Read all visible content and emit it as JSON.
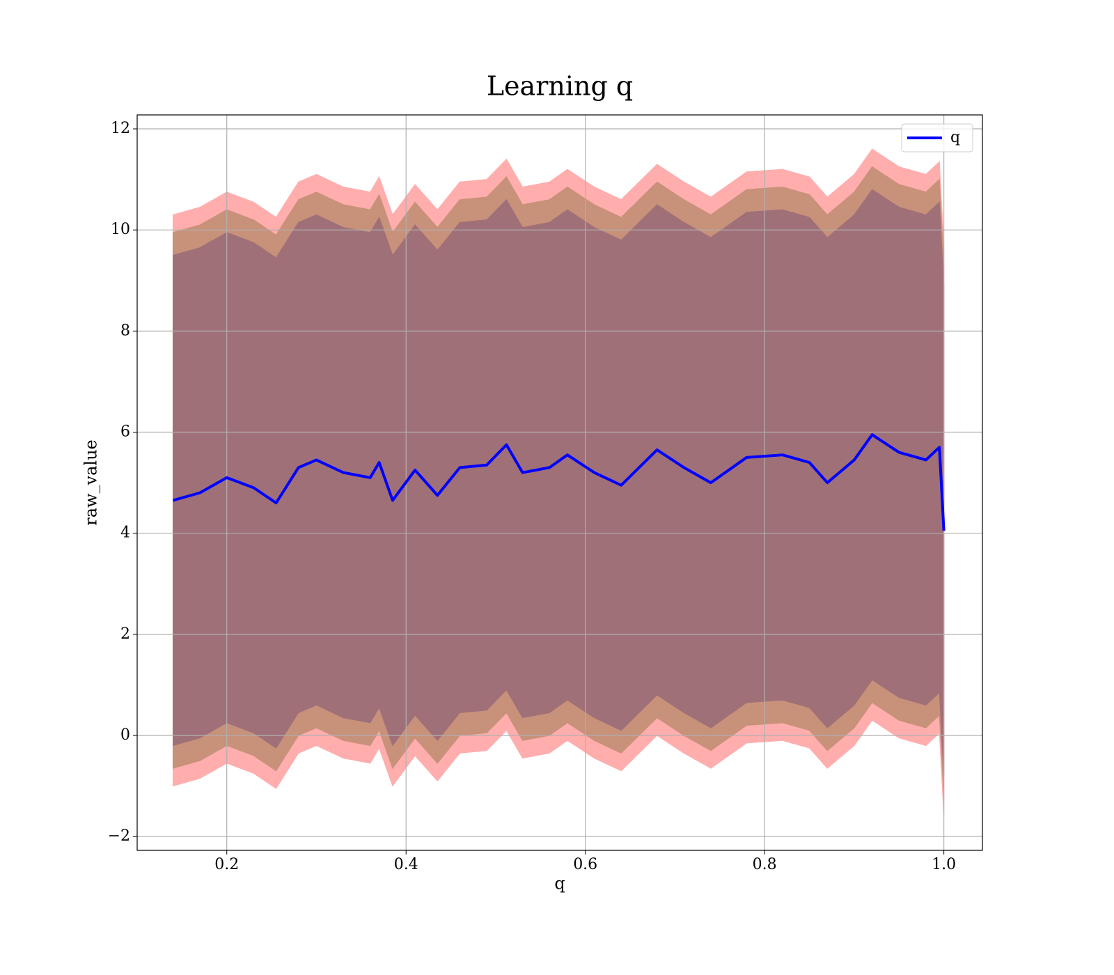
{
  "chart_data": {
    "type": "line",
    "title": "Learning q",
    "xlabel": "q",
    "ylabel": "raw_value",
    "x": [
      0.14,
      0.17,
      0.2,
      0.23,
      0.255,
      0.28,
      0.3,
      0.33,
      0.36,
      0.37,
      0.385,
      0.41,
      0.435,
      0.46,
      0.49,
      0.512,
      0.53,
      0.56,
      0.58,
      0.61,
      0.64,
      0.68,
      0.71,
      0.74,
      0.78,
      0.82,
      0.85,
      0.87,
      0.9,
      0.92,
      0.95,
      0.98,
      0.995,
      1.0
    ],
    "series": [
      {
        "name": "q",
        "color": "#0000ff",
        "values": [
          4.65,
          4.8,
          5.1,
          4.9,
          4.6,
          5.3,
          5.45,
          5.2,
          5.1,
          5.4,
          4.65,
          5.25,
          4.75,
          5.3,
          5.35,
          5.75,
          5.2,
          5.3,
          5.55,
          5.2,
          4.95,
          5.65,
          5.3,
          5.0,
          5.5,
          5.55,
          5.4,
          5.0,
          5.45,
          5.95,
          5.6,
          5.45,
          5.7,
          4.05
        ]
      }
    ],
    "bands": [
      {
        "color": "#ffadad",
        "upper": [
          10.3,
          10.45,
          10.75,
          10.55,
          10.25,
          10.95,
          11.1,
          10.85,
          10.75,
          11.05,
          10.3,
          10.9,
          10.4,
          10.95,
          11.0,
          11.4,
          10.85,
          10.95,
          11.2,
          10.85,
          10.6,
          11.3,
          10.95,
          10.65,
          11.15,
          11.2,
          11.05,
          10.65,
          11.1,
          11.6,
          11.25,
          11.1,
          11.35,
          9.7
        ],
        "lower": [
          -1.0,
          -0.85,
          -0.55,
          -0.75,
          -1.05,
          -0.35,
          -0.2,
          -0.45,
          -0.55,
          -0.25,
          -1.0,
          -0.4,
          -0.9,
          -0.35,
          -0.3,
          0.1,
          -0.45,
          -0.35,
          -0.1,
          -0.45,
          -0.7,
          0,
          -0.35,
          -0.65,
          -0.15,
          -0.1,
          -0.25,
          -0.65,
          -0.2,
          0.3,
          -0.05,
          -0.2,
          0.05,
          -1.6
        ]
      },
      {
        "color": "#c8917a",
        "upper": [
          9.95,
          10.1,
          10.4,
          10.2,
          9.9,
          10.6,
          10.75,
          10.5,
          10.4,
          10.7,
          9.95,
          10.55,
          10.05,
          10.6,
          10.65,
          11.05,
          10.5,
          10.6,
          10.85,
          10.5,
          10.25,
          10.95,
          10.6,
          10.3,
          10.8,
          10.85,
          10.7,
          10.3,
          10.75,
          11.25,
          10.9,
          10.75,
          11.0,
          9.35
        ],
        "lower": [
          -0.65,
          -0.5,
          -0.2,
          -0.4,
          -0.7,
          0,
          0.15,
          -0.1,
          -0.2,
          0.1,
          -0.65,
          -0.05,
          -0.55,
          0,
          0.05,
          0.45,
          -0.1,
          0,
          0.25,
          -0.1,
          -0.35,
          0.35,
          0,
          -0.3,
          0.2,
          0.25,
          0.1,
          -0.3,
          0.15,
          0.65,
          0.3,
          0.15,
          0.4,
          -1.25
        ]
      },
      {
        "color": "#a07078",
        "upper": [
          9.5,
          9.65,
          9.95,
          9.75,
          9.45,
          10.15,
          10.3,
          10.05,
          9.95,
          10.25,
          9.5,
          10.1,
          9.6,
          10.15,
          10.2,
          10.6,
          10.05,
          10.15,
          10.4,
          10.05,
          9.8,
          10.5,
          10.15,
          9.85,
          10.35,
          10.4,
          10.25,
          9.85,
          10.3,
          10.8,
          10.45,
          10.3,
          10.55,
          8.9
        ],
        "lower": [
          -0.2,
          -0.05,
          0.25,
          0.05,
          -0.25,
          0.45,
          0.6,
          0.35,
          0.25,
          0.55,
          -0.2,
          0.4,
          -0.1,
          0.45,
          0.5,
          0.9,
          0.35,
          0.45,
          0.7,
          0.35,
          0.1,
          0.8,
          0.45,
          0.15,
          0.65,
          0.7,
          0.55,
          0.15,
          0.6,
          1.1,
          0.75,
          0.6,
          0.85,
          -0.8
        ]
      }
    ],
    "xlim": [
      0.1,
      1.043
    ],
    "ylim": [
      -2.273,
      12.276
    ],
    "xticks": [
      0.2,
      0.4,
      0.6,
      0.8,
      {
        "value": 1.0,
        "label": "1.0"
      }
    ],
    "yticks": [
      {
        "value": -2,
        "label": "−2"
      },
      0,
      2,
      4,
      6,
      8,
      10,
      12
    ],
    "grid": true,
    "legend": "upper right"
  }
}
